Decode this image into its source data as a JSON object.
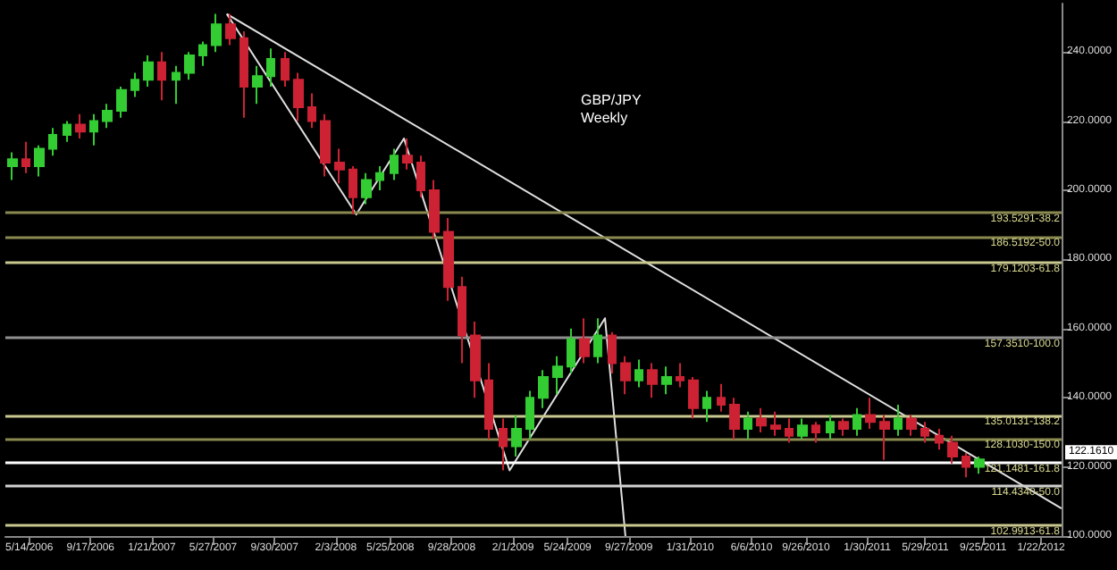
{
  "chart_data": {
    "type": "candlestick",
    "title": "GBP/JPY",
    "subtitle": "Weekly",
    "x": [
      "2006-04-09",
      "2006-05-07",
      "2006-06-04",
      "2006-07-02",
      "2006-07-30",
      "2006-08-27",
      "2006-09-24",
      "2006-10-22",
      "2006-11-19",
      "2006-12-17",
      "2007-01-14",
      "2007-02-11",
      "2007-03-11",
      "2007-04-08",
      "2007-05-06",
      "2007-06-03",
      "2007-07-01",
      "2007-07-29",
      "2007-08-26",
      "2007-09-23",
      "2007-10-21",
      "2007-11-18",
      "2007-12-16",
      "2008-01-13",
      "2008-02-10",
      "2008-03-09",
      "2008-04-06",
      "2008-05-04",
      "2008-06-01",
      "2008-06-29",
      "2008-07-27",
      "2008-08-24",
      "2008-09-21",
      "2008-10-19",
      "2008-11-16",
      "2008-12-14",
      "2009-01-11",
      "2009-02-08",
      "2009-03-08",
      "2009-04-05",
      "2009-05-03",
      "2009-05-31",
      "2009-06-28",
      "2009-07-26",
      "2009-08-23",
      "2009-09-20",
      "2009-10-18",
      "2009-11-15",
      "2009-12-13",
      "2010-01-10",
      "2010-02-07",
      "2010-03-07",
      "2010-04-04",
      "2010-05-02",
      "2010-05-30",
      "2010-06-27",
      "2010-07-25",
      "2010-08-22",
      "2010-09-19",
      "2010-10-17",
      "2010-11-14",
      "2010-12-12",
      "2011-01-09",
      "2011-02-06",
      "2011-03-06",
      "2011-04-03",
      "2011-05-01",
      "2011-05-29",
      "2011-06-26",
      "2011-07-24",
      "2011-08-21",
      "2011-09-18"
    ],
    "ohlc": [
      [
        207,
        211,
        203,
        209
      ],
      [
        209,
        214,
        205,
        207
      ],
      [
        207,
        213,
        204,
        212
      ],
      [
        212,
        218,
        210,
        216
      ],
      [
        216,
        220,
        214,
        219
      ],
      [
        219,
        222,
        215,
        217
      ],
      [
        217,
        222,
        213,
        220
      ],
      [
        220,
        225,
        218,
        223
      ],
      [
        223,
        230,
        221,
        229
      ],
      [
        229,
        234,
        227,
        232
      ],
      [
        232,
        239,
        230,
        237
      ],
      [
        237,
        240,
        226,
        232
      ],
      [
        232,
        236,
        225,
        234
      ],
      [
        234,
        240,
        232,
        239
      ],
      [
        239,
        243,
        236,
        242
      ],
      [
        242,
        251,
        240,
        248
      ],
      [
        248,
        251,
        242,
        244
      ],
      [
        244,
        246,
        221,
        230
      ],
      [
        230,
        236,
        225,
        233
      ],
      [
        233,
        241,
        230,
        238
      ],
      [
        238,
        240,
        230,
        232
      ],
      [
        232,
        234,
        220,
        224
      ],
      [
        224,
        228,
        218,
        220
      ],
      [
        220,
        222,
        204,
        208
      ],
      [
        208,
        212,
        202,
        206
      ],
      [
        206,
        207,
        193,
        198
      ],
      [
        198,
        205,
        196,
        203
      ],
      [
        203,
        207,
        200,
        205
      ],
      [
        205,
        212,
        203,
        210
      ],
      [
        210,
        215,
        206,
        208
      ],
      [
        208,
        210,
        198,
        200
      ],
      [
        200,
        203,
        186,
        188
      ],
      [
        188,
        192,
        168,
        172
      ],
      [
        172,
        175,
        150,
        158
      ],
      [
        158,
        162,
        140,
        145
      ],
      [
        145,
        150,
        128,
        131
      ],
      [
        131,
        134,
        119,
        126
      ],
      [
        126,
        135,
        123,
        131
      ],
      [
        131,
        142,
        128,
        140
      ],
      [
        140,
        148,
        137,
        146
      ],
      [
        146,
        152,
        141,
        149
      ],
      [
        149,
        160,
        147,
        157
      ],
      [
        157,
        163,
        150,
        152
      ],
      [
        152,
        163,
        150,
        158
      ],
      [
        158,
        159,
        147,
        150
      ],
      [
        150,
        152,
        141,
        145
      ],
      [
        145,
        151,
        143,
        148
      ],
      [
        148,
        150,
        140,
        144
      ],
      [
        144,
        149,
        141,
        146
      ],
      [
        146,
        150,
        143,
        145
      ],
      [
        145,
        146,
        134,
        137
      ],
      [
        137,
        142,
        133,
        140
      ],
      [
        140,
        144,
        136,
        138
      ],
      [
        138,
        140,
        128,
        131
      ],
      [
        131,
        136,
        128,
        134
      ],
      [
        134,
        137,
        130,
        132
      ],
      [
        132,
        136,
        129,
        131
      ],
      [
        131,
        134,
        127,
        129
      ],
      [
        129,
        134,
        128,
        132
      ],
      [
        132,
        133,
        127,
        130
      ],
      [
        130,
        135,
        128,
        133
      ],
      [
        133,
        134,
        129,
        131
      ],
      [
        131,
        137,
        129,
        135
      ],
      [
        135,
        140,
        131,
        133
      ],
      [
        133,
        135,
        122,
        131
      ],
      [
        131,
        138,
        129,
        134
      ],
      [
        134,
        135,
        129,
        131
      ],
      [
        131,
        133,
        127,
        129
      ],
      [
        129,
        131,
        125,
        127
      ],
      [
        127,
        129,
        121,
        123
      ],
      [
        123,
        124,
        117,
        120
      ],
      [
        120,
        123,
        118,
        122.161
      ]
    ],
    "colors": [
      "#33cc33",
      "#cc2233",
      "#33cc33",
      "#33cc33",
      "#33cc33",
      "#cc2233",
      "#33cc33",
      "#33cc33",
      "#33cc33",
      "#33cc33",
      "#33cc33",
      "#cc2233",
      "#33cc33",
      "#33cc33",
      "#33cc33",
      "#33cc33",
      "#cc2233",
      "#cc2233",
      "#33cc33",
      "#33cc33",
      "#cc2233",
      "#cc2233",
      "#cc2233",
      "#cc2233",
      "#cc2233",
      "#cc2233",
      "#33cc33",
      "#33cc33",
      "#33cc33",
      "#cc2233",
      "#cc2233",
      "#cc2233",
      "#cc2233",
      "#cc2233",
      "#cc2233",
      "#cc2233",
      "#cc2233",
      "#33cc33",
      "#33cc33",
      "#33cc33",
      "#33cc33",
      "#33cc33",
      "#cc2233",
      "#33cc33",
      "#cc2233",
      "#cc2233",
      "#33cc33",
      "#cc2233",
      "#33cc33",
      "#cc2233",
      "#cc2233",
      "#33cc33",
      "#cc2233",
      "#cc2233",
      "#33cc33",
      "#cc2233",
      "#cc2233",
      "#cc2233",
      "#33cc33",
      "#cc2233",
      "#33cc33",
      "#cc2233",
      "#33cc33",
      "#cc2233",
      "#cc2233",
      "#33cc33",
      "#cc2233",
      "#cc2233",
      "#cc2233",
      "#cc2233",
      "#cc2233",
      "#33cc33"
    ],
    "series": [
      {
        "type": "line",
        "color": "#e0e0e0",
        "x": [
          "2007-06-24",
          "2012-03-04"
        ],
        "values": [
          251,
          108
        ]
      },
      {
        "type": "line",
        "color": "#e0e0e0",
        "x": [
          "2007-06-24",
          "2008-03-16",
          "2008-06-22",
          "2009-01-25",
          "2009-08-09",
          "2009-09-20"
        ],
        "values": [
          251,
          193,
          215,
          119,
          163,
          100
        ]
      }
    ],
    "ref_lines": [
      {
        "axis": "y",
        "value": 193.5291,
        "label": "193.5291-38.2",
        "color": "#8a8a50"
      },
      {
        "axis": "y",
        "value": 186.5192,
        "label": "186.5192-50.0",
        "color": "#8a8a50"
      },
      {
        "axis": "y",
        "value": 179.1203,
        "label": "179.1203-61.8",
        "color": "#c8c890"
      },
      {
        "axis": "y",
        "value": 157.351,
        "label": "157.3510-100.0",
        "color": "#909090"
      },
      {
        "axis": "y",
        "value": 135.0131,
        "label": "135.0131-138.2",
        "color": "#c8c890"
      },
      {
        "axis": "y",
        "value": 128.103,
        "label": "128.1030-150.0",
        "color": "#8a8a50"
      },
      {
        "axis": "y",
        "value": 121.1481,
        "label": "121.1481-161.8",
        "color": "#ffffff"
      },
      {
        "axis": "y",
        "value": 114.434,
        "label": "114.4340-50.0",
        "color": "#d0d0d0"
      },
      {
        "axis": "y",
        "value": 102.9913,
        "label": "102.9913-61.8",
        "color": "#c8c890"
      }
    ],
    "annotations": [
      "122.1610"
    ],
    "xlim": [
      "2006-03-26",
      "2012-03-04"
    ],
    "xticks": [
      {
        "value": "2006-05-14",
        "label": "5/14/2006"
      },
      {
        "value": "2006-09-17",
        "label": "9/17/2006"
      },
      {
        "value": "2007-01-21",
        "label": "1/21/2007"
      },
      {
        "value": "2007-05-27",
        "label": "5/27/2007"
      },
      {
        "value": "2007-09-30",
        "label": "9/30/2007"
      },
      {
        "value": "2008-02-03",
        "label": "2/3/2008"
      },
      {
        "value": "2008-05-25",
        "label": "5/25/2008"
      },
      {
        "value": "2008-09-28",
        "label": "9/28/2008"
      },
      {
        "value": "2009-02-01",
        "label": "2/1/2009"
      },
      {
        "value": "2009-05-24",
        "label": "5/24/2009"
      },
      {
        "value": "2009-09-27",
        "label": "9/27/2009"
      },
      {
        "value": "2010-01-31",
        "label": "1/31/2010"
      },
      {
        "value": "2010-06-06",
        "label": "6/6/2010"
      },
      {
        "value": "2010-09-26",
        "label": "9/26/2010"
      },
      {
        "value": "2011-01-30",
        "label": "1/30/2011"
      },
      {
        "value": "2011-05-29",
        "label": "5/29/2011"
      },
      {
        "value": "2011-09-25",
        "label": "9/25/2011"
      },
      {
        "value": "2012-01-22",
        "label": "1/22/2012"
      }
    ],
    "ylim": [
      100,
      254
    ],
    "yticks": [
      {
        "value": 100,
        "label": "100.0000"
      },
      {
        "value": 120,
        "label": "120.0000"
      },
      {
        "value": 140,
        "label": "140.0000"
      },
      {
        "value": 160,
        "label": "160.0000"
      },
      {
        "value": 180,
        "label": "180.0000"
      },
      {
        "value": 200,
        "label": "200.0000"
      },
      {
        "value": 220,
        "label": "220.0000"
      },
      {
        "value": 240,
        "label": "240.0000"
      }
    ],
    "grid": false
  }
}
